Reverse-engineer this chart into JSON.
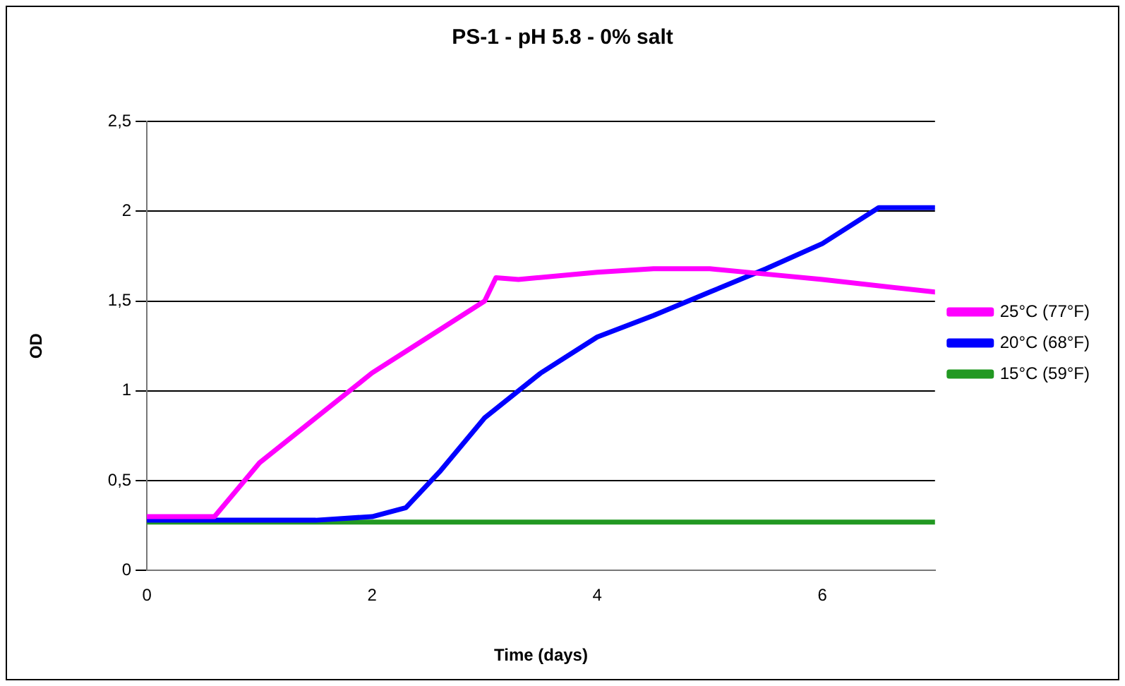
{
  "chart_data": {
    "type": "line",
    "title": "PS-1 - pH 5.8 - 0% salt",
    "xlabel": "Time (days)",
    "ylabel": "OD",
    "xlim": [
      0,
      7
    ],
    "xticks": [
      0,
      2,
      4,
      6
    ],
    "ylim": [
      0,
      2.5
    ],
    "yticks": [
      0,
      {
        "value": 0.5,
        "label": "0,5"
      },
      1,
      {
        "value": 1.5,
        "label": "1,5"
      },
      2,
      {
        "value": 2.5,
        "label": "2,5"
      }
    ],
    "grid": "y",
    "legend": "right",
    "marker": "none",
    "line_style": "solid",
    "series": [
      {
        "name": "25°C (77°F)",
        "color": "#ff00ff",
        "x": [
          0,
          0.6,
          1,
          1.5,
          2,
          2.5,
          3,
          3.1,
          3.3,
          4,
          4.5,
          5,
          5.5,
          6,
          7
        ],
        "values": [
          0.3,
          0.3,
          0.6,
          0.85,
          1.1,
          1.3,
          1.5,
          1.63,
          1.62,
          1.66,
          1.68,
          1.68,
          1.65,
          1.62,
          1.55
        ]
      },
      {
        "name": "20°C (68°F)",
        "color": "#0000ff",
        "x": [
          0,
          1.5,
          2,
          2.3,
          2.6,
          3,
          3.5,
          4,
          4.5,
          5,
          5.5,
          6,
          6.5,
          7
        ],
        "values": [
          0.28,
          0.28,
          0.3,
          0.35,
          0.55,
          0.85,
          1.1,
          1.3,
          1.42,
          1.55,
          1.68,
          1.82,
          2.02,
          2.02
        ]
      },
      {
        "name": "15°C (59°F)",
        "color": "#229922",
        "x": [
          0,
          7
        ],
        "values": [
          0.27,
          0.27
        ]
      }
    ]
  }
}
